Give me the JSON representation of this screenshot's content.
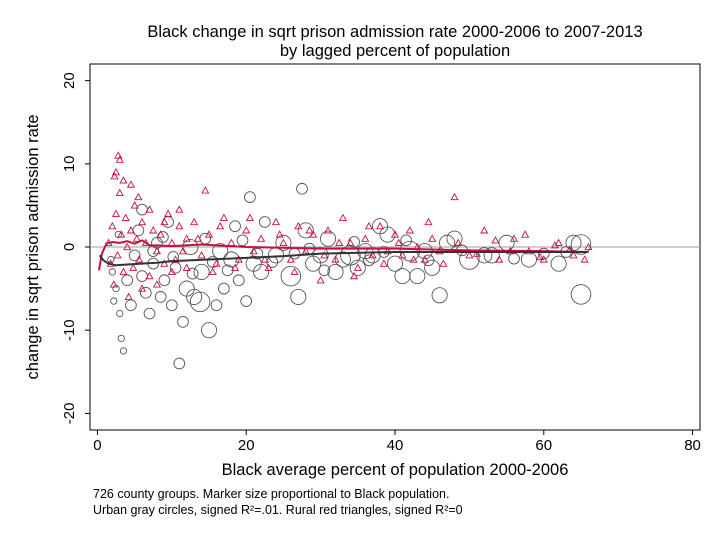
{
  "chart_data": {
    "type": "scatter",
    "title": [
      "Black change in sqrt prison admission rate 2000-2006 to 2007-2013",
      "by lagged percent of population"
    ],
    "xlabel": "Black average percent of population 2000-2006",
    "ylabel": "change in sqrt prison admission rate",
    "xlim": [
      -1,
      81
    ],
    "ylim": [
      -22,
      22
    ],
    "xticks": [
      0,
      20,
      40,
      60,
      80
    ],
    "yticks": [
      -20,
      -10,
      0,
      10,
      20
    ],
    "reference_line_y": 0,
    "grid": false,
    "series": [
      {
        "marker": "circle",
        "color": "#555555",
        "points": [
          [
            2.0,
            -3.0,
            1
          ],
          [
            2.5,
            -5.0,
            1
          ],
          [
            3.0,
            -8.0,
            1
          ],
          [
            3.2,
            -11.0,
            1
          ],
          [
            3.5,
            -12.5,
            1
          ],
          [
            1.8,
            -1.5,
            1
          ],
          [
            2.2,
            -6.5,
            1
          ],
          [
            2.8,
            1.5,
            1
          ],
          [
            4.0,
            -4.0,
            2
          ],
          [
            4.5,
            -7.0,
            2
          ],
          [
            5.0,
            -1.0,
            2
          ],
          [
            5.5,
            2.0,
            2
          ],
          [
            6.0,
            -3.5,
            2
          ],
          [
            6.5,
            -5.5,
            2
          ],
          [
            7.0,
            -8.0,
            2
          ],
          [
            7.5,
            -2.0,
            2
          ],
          [
            8.0,
            0.5,
            2
          ],
          [
            8.5,
            -6.0,
            2
          ],
          [
            9.0,
            -4.0,
            2
          ],
          [
            10.0,
            -7.0,
            2
          ],
          [
            11.0,
            -14.0,
            2
          ],
          [
            12.0,
            -5.0,
            3
          ],
          [
            9.5,
            3.0,
            2
          ],
          [
            10.5,
            -2.5,
            2
          ],
          [
            11.5,
            -9.0,
            2
          ],
          [
            13.0,
            -6.0,
            3
          ],
          [
            14.0,
            -3.0,
            3
          ],
          [
            15.0,
            -10.0,
            3
          ],
          [
            16.0,
            -7.0,
            2
          ],
          [
            17.0,
            -5.0,
            2
          ],
          [
            18.0,
            -1.5,
            3
          ],
          [
            19.0,
            -4.0,
            2
          ],
          [
            20.0,
            -6.5,
            2
          ],
          [
            21.0,
            -2.0,
            3
          ],
          [
            22.0,
            -3.0,
            3
          ],
          [
            24.0,
            -1.0,
            3
          ],
          [
            26.0,
            -3.5,
            4
          ],
          [
            27.0,
            -6.0,
            3
          ],
          [
            28.0,
            2.0,
            3
          ],
          [
            30.0,
            -1.0,
            3
          ],
          [
            32.0,
            -3.0,
            3
          ],
          [
            34.0,
            -1.0,
            4
          ],
          [
            35.0,
            -2.5,
            3
          ],
          [
            36.0,
            -0.5,
            3
          ],
          [
            38.0,
            2.5,
            3
          ],
          [
            40.0,
            -2.0,
            3
          ],
          [
            41.0,
            -3.5,
            3
          ],
          [
            42.0,
            -0.5,
            4
          ],
          [
            43.0,
            -3.5,
            3
          ],
          [
            44.0,
            -0.5,
            3
          ],
          [
            45.0,
            -2.5,
            3
          ],
          [
            46.0,
            -5.8,
            3
          ],
          [
            47.0,
            0.5,
            3
          ],
          [
            50.0,
            -1.5,
            4
          ],
          [
            52.0,
            -1.0,
            3
          ],
          [
            55.0,
            0.5,
            3
          ],
          [
            58.0,
            -1.5,
            3
          ],
          [
            62.0,
            -2.0,
            3
          ],
          [
            64.0,
            0.5,
            3
          ],
          [
            65.0,
            0.3,
            4
          ],
          [
            65.0,
            -5.7,
            4
          ],
          [
            6.0,
            4.5,
            2
          ],
          [
            12.5,
            0.0,
            3
          ],
          [
            14.5,
            1.0,
            2
          ],
          [
            16.5,
            -0.5,
            3
          ],
          [
            18.5,
            2.5,
            2
          ],
          [
            20.5,
            6.0,
            2
          ],
          [
            22.5,
            3.0,
            2
          ],
          [
            25.0,
            0.5,
            3
          ],
          [
            29.0,
            -2.0,
            3
          ],
          [
            31.0,
            1.0,
            3
          ],
          [
            33.0,
            -1.5,
            3
          ],
          [
            37.0,
            -1.0,
            3
          ],
          [
            27.5,
            7.0,
            2
          ],
          [
            39.0,
            1.5,
            3
          ],
          [
            48.0,
            1.0,
            3
          ],
          [
            53.0,
            -1.0,
            3
          ],
          [
            7.5,
            -0.5,
            2
          ],
          [
            8.8,
            1.2,
            2
          ],
          [
            10.2,
            -1.2,
            2
          ],
          [
            12.8,
            -3.2,
            2
          ],
          [
            13.8,
            -6.6,
            4
          ],
          [
            15.5,
            -1.8,
            2
          ],
          [
            17.5,
            -2.8,
            2
          ],
          [
            19.5,
            0.8,
            2
          ],
          [
            21.5,
            -0.8,
            2
          ],
          [
            23.5,
            -1.8,
            2
          ],
          [
            26.5,
            -0.8,
            2
          ],
          [
            28.5,
            -0.2,
            2
          ],
          [
            30.5,
            -2.8,
            2
          ],
          [
            34.5,
            0.6,
            2
          ],
          [
            36.5,
            -1.6,
            2
          ],
          [
            38.5,
            -0.6,
            2
          ],
          [
            41.5,
            0.8,
            2
          ],
          [
            44.5,
            -1.6,
            2
          ],
          [
            49.0,
            -0.4,
            2
          ],
          [
            56.0,
            -1.4,
            2
          ],
          [
            60.0,
            -0.8,
            2
          ],
          [
            63.0,
            -0.6,
            2
          ]
        ]
      },
      {
        "marker": "triangle",
        "color": "#c8103e",
        "points": [
          [
            1.5,
            0.5
          ],
          [
            1.8,
            -2.0
          ],
          [
            2.0,
            2.5
          ],
          [
            2.2,
            -4.5
          ],
          [
            2.5,
            4.0
          ],
          [
            2.7,
            -1.0
          ],
          [
            3.0,
            6.5
          ],
          [
            3.2,
            1.5
          ],
          [
            3.5,
            -3.0
          ],
          [
            3.8,
            3.5
          ],
          [
            4.0,
            0.0
          ],
          [
            4.2,
            -6.0
          ],
          [
            4.5,
            2.0
          ],
          [
            4.8,
            -2.5
          ],
          [
            5.0,
            5.0
          ],
          [
            5.3,
            1.0
          ],
          [
            5.6,
            -1.5
          ],
          [
            6.0,
            3.0
          ],
          [
            6.5,
            0.5
          ],
          [
            7.0,
            -3.5
          ],
          [
            7.5,
            2.0
          ],
          [
            8.0,
            -0.5
          ],
          [
            8.5,
            1.5
          ],
          [
            9.0,
            -2.0
          ],
          [
            9.5,
            4.0
          ],
          [
            10.0,
            0.5
          ],
          [
            10.5,
            -1.5
          ],
          [
            11.0,
            2.5
          ],
          [
            11.5,
            -0.5
          ],
          [
            12.0,
            1.0
          ],
          [
            13.0,
            3.0
          ],
          [
            14.0,
            -1.0
          ],
          [
            14.5,
            6.8
          ],
          [
            15.0,
            1.5
          ],
          [
            16.0,
            -2.0
          ],
          [
            17.0,
            3.5
          ],
          [
            18.0,
            0.5
          ],
          [
            19.0,
            -1.5
          ],
          [
            20.0,
            2.0
          ],
          [
            21.0,
            -0.5
          ],
          [
            22.0,
            1.0
          ],
          [
            23.0,
            -2.5
          ],
          [
            24.0,
            3.0
          ],
          [
            25.0,
            0.5
          ],
          [
            26.0,
            -1.5
          ],
          [
            27.0,
            2.5
          ],
          [
            28.0,
            -0.5
          ],
          [
            29.0,
            1.5
          ],
          [
            30.0,
            -4.0
          ],
          [
            31.0,
            2.0
          ],
          [
            32.0,
            -1.5
          ],
          [
            33.0,
            3.5
          ],
          [
            34.0,
            0.5
          ],
          [
            35.0,
            -2.5
          ],
          [
            36.0,
            1.0
          ],
          [
            37.0,
            -1.0
          ],
          [
            38.0,
            2.5
          ],
          [
            39.0,
            -0.5
          ],
          [
            40.0,
            1.5
          ],
          [
            41.0,
            -1.0
          ],
          [
            42.0,
            2.0
          ],
          [
            43.0,
            0.0
          ],
          [
            44.0,
            -1.5
          ],
          [
            45.0,
            1.0
          ],
          [
            46.0,
            -0.5
          ],
          [
            48.0,
            6.0
          ],
          [
            50.0,
            -1.0
          ],
          [
            52.0,
            2.0
          ],
          [
            54.0,
            -1.5
          ],
          [
            56.0,
            1.0
          ],
          [
            58.0,
            -0.5
          ],
          [
            60.0,
            -1.5
          ],
          [
            62.0,
            0.5
          ],
          [
            64.0,
            -1.0
          ],
          [
            66.0,
            0.0
          ],
          [
            2.5,
            9.0
          ],
          [
            2.8,
            11.0
          ],
          [
            3.0,
            10.5
          ],
          [
            2.3,
            8.5
          ],
          [
            3.5,
            8.0
          ],
          [
            4.5,
            7.5
          ],
          [
            5.5,
            6.0
          ],
          [
            6.0,
            -5.0
          ],
          [
            7.0,
            4.5
          ],
          [
            8.0,
            -4.5
          ],
          [
            9.0,
            3.0
          ],
          [
            10.0,
            -3.0
          ],
          [
            11.0,
            4.5
          ],
          [
            12.0,
            -2.5
          ],
          [
            13.5,
            1.0
          ],
          [
            15.5,
            -3.0
          ],
          [
            16.5,
            2.5
          ],
          [
            18.5,
            -2.5
          ],
          [
            20.5,
            3.5
          ],
          [
            22.5,
            -1.5
          ],
          [
            24.5,
            1.5
          ],
          [
            26.5,
            -3.0
          ],
          [
            28.5,
            2.0
          ],
          [
            30.5,
            -1.0
          ],
          [
            32.5,
            0.5
          ],
          [
            34.5,
            -3.5
          ],
          [
            36.5,
            2.5
          ],
          [
            38.5,
            -2.0
          ],
          [
            40.5,
            0.5
          ],
          [
            42.5,
            -1.5
          ],
          [
            44.5,
            3.0
          ],
          [
            46.5,
            -2.0
          ],
          [
            48.5,
            0.5
          ],
          [
            51.0,
            -0.8
          ],
          [
            53.5,
            0.8
          ],
          [
            55.5,
            -0.5
          ],
          [
            57.5,
            1.5
          ],
          [
            59.5,
            -1.2
          ],
          [
            61.5,
            0.2
          ],
          [
            63.5,
            -0.3
          ],
          [
            65.5,
            -1.5
          ]
        ]
      }
    ],
    "fit_lines": [
      {
        "color": "#c8103e",
        "points": [
          [
            0.2,
            -2.8
          ],
          [
            0.6,
            -0.8
          ],
          [
            1.2,
            0.4
          ],
          [
            2.0,
            0.6
          ],
          [
            3.0,
            0.5
          ],
          [
            4.0,
            0.7
          ],
          [
            5.0,
            0.4
          ],
          [
            6.0,
            0.8
          ],
          [
            7.0,
            0.2
          ],
          [
            8.0,
            0.2
          ],
          [
            10.0,
            0.1
          ],
          [
            14.0,
            0.3
          ],
          [
            20.0,
            0.0
          ],
          [
            30.0,
            -0.2
          ],
          [
            40.0,
            -0.2
          ],
          [
            50.0,
            -0.4
          ],
          [
            60.0,
            -0.5
          ],
          [
            66.0,
            -0.6
          ]
        ]
      },
      {
        "color": "#333333",
        "points": [
          [
            0.3,
            -1.0
          ],
          [
            0.8,
            -1.6
          ],
          [
            1.5,
            -2.0
          ],
          [
            2.5,
            -2.2
          ],
          [
            4.0,
            -2.1
          ],
          [
            6.0,
            -2.0
          ],
          [
            8.0,
            -1.9
          ],
          [
            10.0,
            -1.7
          ],
          [
            15.0,
            -1.5
          ],
          [
            20.0,
            -1.3
          ],
          [
            25.0,
            -1.1
          ],
          [
            30.0,
            -0.8
          ],
          [
            40.0,
            -0.6
          ],
          [
            50.0,
            -0.6
          ],
          [
            60.0,
            -0.6
          ],
          [
            66.0,
            -0.6
          ]
        ]
      }
    ]
  },
  "notes": [
    "726 county groups. Marker size proportional to Black population.",
    "Urban gray circles, signed R²=.01. Rural red triangles, signed R²=0"
  ]
}
